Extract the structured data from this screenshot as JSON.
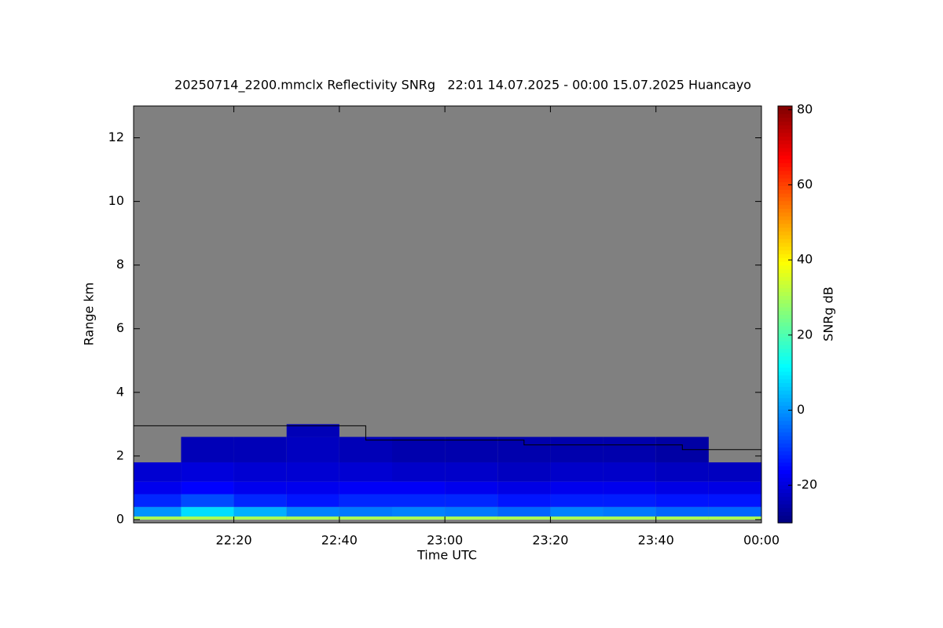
{
  "chart_data": {
    "type": "heatmap",
    "title": "20250714_2200.mmclx Reflectivity SNRg   22:01 14.07.2025 - 00:00 15.07.2025 Huancayo",
    "x_label": "Time UTC",
    "y_label": "Range km",
    "xlim": [
      1321,
      1440
    ],
    "xticks": [
      {
        "value": 1340,
        "label": "22:20"
      },
      {
        "value": 1360,
        "label": "22:40"
      },
      {
        "value": 1380,
        "label": "23:00"
      },
      {
        "value": 1400,
        "label": "23:20"
      },
      {
        "value": 1420,
        "label": "23:40"
      },
      {
        "value": 1440,
        "label": "00:00"
      }
    ],
    "ylim": [
      -0.1,
      13
    ],
    "yticks": [
      0,
      2,
      4,
      6,
      8,
      10,
      12
    ],
    "background": "#808080",
    "colormap": "jet",
    "x_bins": [
      1321,
      1330,
      1340,
      1350,
      1360,
      1370,
      1380,
      1390,
      1400,
      1410,
      1420,
      1430,
      1440
    ],
    "y_bins": [
      0,
      0.1,
      0.4,
      0.8,
      1.2,
      1.8,
      2.6,
      3.0
    ],
    "z": [
      [
        30,
        30,
        30,
        30,
        30,
        30,
        30,
        30,
        30,
        30,
        30,
        30
      ],
      [
        0,
        8,
        3,
        -2,
        -3,
        -2,
        -3,
        -5,
        -2,
        -3,
        -5,
        -5
      ],
      [
        -12,
        -8,
        -12,
        -14,
        -12,
        -12,
        -12,
        -14,
        -13,
        -13,
        -14,
        -14
      ],
      [
        -18,
        -16,
        -18,
        -18,
        -17,
        -17,
        -18,
        -19,
        -18,
        -18,
        -19,
        -19
      ],
      [
        -21,
        -20,
        -21,
        -21,
        -21,
        -22,
        -22,
        -23,
        -22,
        -22,
        -23,
        -23
      ],
      [
        null,
        -24,
        -24,
        -23,
        -24,
        -25,
        -25,
        -25,
        -25,
        -25,
        -26,
        null
      ],
      [
        null,
        null,
        null,
        -24,
        null,
        null,
        null,
        null,
        null,
        null,
        null,
        null
      ]
    ],
    "colorbar": {
      "label": "SNRg dB",
      "lim": [
        -30,
        81
      ],
      "ticks": [
        -20,
        0,
        20,
        40,
        60,
        80
      ]
    },
    "boundary": {
      "color": "#000000",
      "x": [
        1321,
        1365,
        1365,
        1395,
        1395,
        1425,
        1425,
        1440
      ],
      "values": [
        2.95,
        2.95,
        2.5,
        2.5,
        2.35,
        2.35,
        2.2,
        2.2
      ]
    }
  }
}
